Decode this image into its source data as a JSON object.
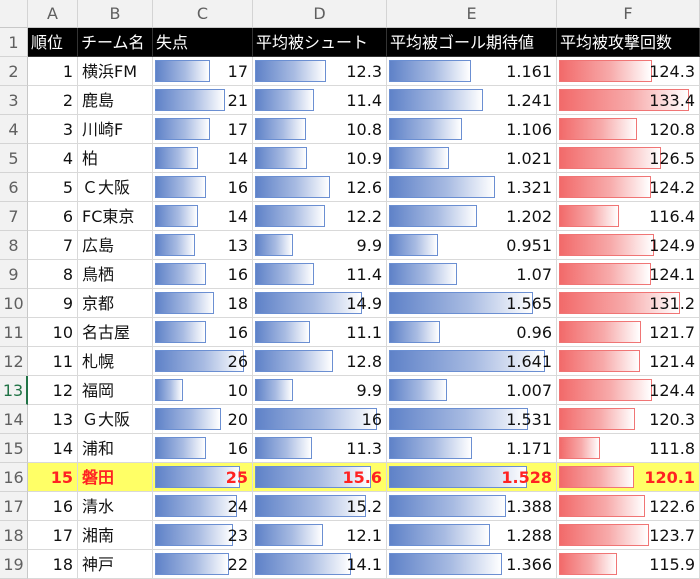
{
  "colors": {
    "header_bg": "#000000",
    "highlight_bg": "#ffff66",
    "highlight_text": "#ff2222",
    "bar_blue": "#5f82c8",
    "bar_red": "#f26a6a"
  },
  "column_letters": [
    "A",
    "B",
    "C",
    "D",
    "E",
    "F"
  ],
  "headers": [
    "順位",
    "チーム名",
    "失点",
    "平均被シュート",
    "平均被ゴール期待値",
    "平均被攻撃回数"
  ],
  "highlight_row": 15,
  "rows": [
    {
      "rank": "1",
      "team": "横浜FM",
      "conceded": "17",
      "shots": "12.3",
      "xg": "1.161",
      "attacks": "124.3"
    },
    {
      "rank": "2",
      "team": "鹿島",
      "conceded": "21",
      "shots": "11.4",
      "xg": "1.241",
      "attacks": "133.4"
    },
    {
      "rank": "3",
      "team": "川崎F",
      "conceded": "17",
      "shots": "10.8",
      "xg": "1.106",
      "attacks": "120.8"
    },
    {
      "rank": "4",
      "team": "柏",
      "conceded": "14",
      "shots": "10.9",
      "xg": "1.021",
      "attacks": "126.5"
    },
    {
      "rank": "5",
      "team": "Ｃ大阪",
      "conceded": "16",
      "shots": "12.6",
      "xg": "1.321",
      "attacks": "124.2"
    },
    {
      "rank": "6",
      "team": "FC東京",
      "conceded": "14",
      "shots": "12.2",
      "xg": "1.202",
      "attacks": "116.4"
    },
    {
      "rank": "7",
      "team": "広島",
      "conceded": "13",
      "shots": "9.9",
      "xg": "0.951",
      "attacks": "124.9"
    },
    {
      "rank": "8",
      "team": "鳥栖",
      "conceded": "16",
      "shots": "11.4",
      "xg": "1.07",
      "attacks": "124.1"
    },
    {
      "rank": "9",
      "team": "京都",
      "conceded": "18",
      "shots": "14.9",
      "xg": "1.565",
      "attacks": "131.2"
    },
    {
      "rank": "10",
      "team": "名古屋",
      "conceded": "16",
      "shots": "11.1",
      "xg": "0.96",
      "attacks": "121.7"
    },
    {
      "rank": "11",
      "team": "札幌",
      "conceded": "26",
      "shots": "12.8",
      "xg": "1.641",
      "attacks": "121.4"
    },
    {
      "rank": "12",
      "team": "福岡",
      "conceded": "10",
      "shots": "9.9",
      "xg": "1.007",
      "attacks": "124.4"
    },
    {
      "rank": "13",
      "team": "Ｇ大阪",
      "conceded": "20",
      "shots": "16",
      "xg": "1.531",
      "attacks": "120.3"
    },
    {
      "rank": "14",
      "team": "浦和",
      "conceded": "16",
      "shots": "11.3",
      "xg": "1.171",
      "attacks": "111.8"
    },
    {
      "rank": "15",
      "team": "磐田",
      "conceded": "25",
      "shots": "15.6",
      "xg": "1.528",
      "attacks": "120.1"
    },
    {
      "rank": "16",
      "team": "清水",
      "conceded": "24",
      "shots": "15.2",
      "xg": "1.388",
      "attacks": "122.6"
    },
    {
      "rank": "17",
      "team": "湘南",
      "conceded": "23",
      "shots": "12.1",
      "xg": "1.288",
      "attacks": "123.7"
    },
    {
      "rank": "18",
      "team": "神戸",
      "conceded": "22",
      "shots": "14.1",
      "xg": "1.366",
      "attacks": "115.9"
    }
  ],
  "row_numbers": [
    "1",
    "2",
    "3",
    "4",
    "5",
    "6",
    "7",
    "8",
    "9",
    "10",
    "11",
    "12",
    "13",
    "14",
    "15",
    "16",
    "17",
    "18",
    "19"
  ],
  "active_row_number": "13"
}
